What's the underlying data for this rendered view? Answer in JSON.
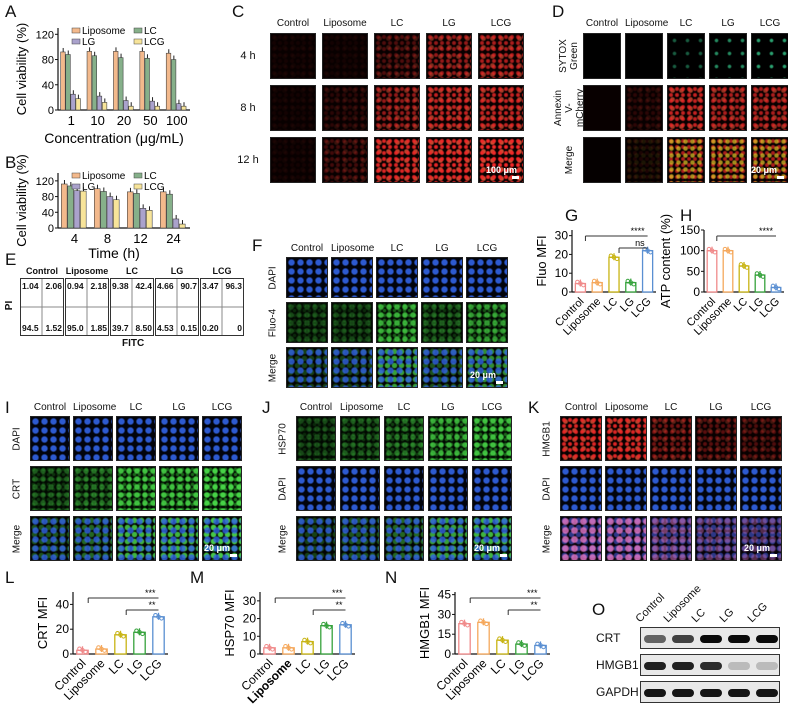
{
  "panel_labels": [
    "A",
    "B",
    "C",
    "D",
    "E",
    "F",
    "G",
    "H",
    "I",
    "J",
    "K",
    "L",
    "M",
    "N",
    "O"
  ],
  "groups": [
    "Control",
    "Liposome",
    "LC",
    "LG",
    "LCG"
  ],
  "colors": {
    "Control": "#f08a8a",
    "Liposome": "#f5a85c",
    "LC": "#c8b414",
    "LG": "#36a23c",
    "LCG": "#5a8fd2",
    "A_Liposome": "#f3b98c",
    "A_LC": "#86b08a",
    "A_LG": "#aaa2cc",
    "A_LCG": "#f7e49a"
  },
  "chart_data": [
    {
      "id": "A",
      "type": "bar",
      "ylabel": "Cell viability (%)",
      "xlabel": "Concentration (μg/mL)",
      "categories": [
        "1",
        "10",
        "20",
        "50",
        "100"
      ],
      "yticks": [
        0,
        40,
        80,
        120
      ],
      "ylim": [
        0,
        130
      ],
      "legend": "top",
      "series": [
        {
          "name": "Liposome",
          "values": [
            92,
            93,
            93,
            93,
            90
          ]
        },
        {
          "name": "LC",
          "values": [
            88,
            86,
            83,
            82,
            80
          ]
        },
        {
          "name": "LG",
          "values": [
            25,
            22,
            15,
            14,
            10
          ]
        },
        {
          "name": "LCG",
          "values": [
            18,
            12,
            6,
            6,
            6
          ]
        }
      ]
    },
    {
      "id": "B",
      "type": "bar",
      "ylabel": "Cell viability (%)",
      "xlabel": "Time (h)",
      "categories": [
        "4",
        "8",
        "12",
        "24"
      ],
      "yticks": [
        0,
        40,
        80,
        120
      ],
      "ylim": [
        0,
        140
      ],
      "legend": "top",
      "series": [
        {
          "name": "Liposome",
          "values": [
            112,
            100,
            92,
            92
          ]
        },
        {
          "name": "LC",
          "values": [
            107,
            93,
            88,
            86
          ]
        },
        {
          "name": "LG",
          "values": [
            95,
            80,
            50,
            23
          ]
        },
        {
          "name": "LCG",
          "values": [
            94,
            72,
            45,
            10
          ]
        }
      ]
    },
    {
      "id": "G",
      "type": "bar",
      "ylabel": "Fluo MFI",
      "categories": [
        "Control",
        "Liposome",
        "LC",
        "LG",
        "LCG"
      ],
      "values": [
        4.5,
        5,
        18.5,
        5,
        22
      ],
      "yticks": [
        0,
        10,
        20,
        30
      ],
      "ylim": [
        0,
        33
      ],
      "annotations": [
        "****",
        "ns"
      ]
    },
    {
      "id": "H",
      "type": "bar",
      "ylabel": "ATP content (%)",
      "categories": [
        "Control",
        "Liposome",
        "LC",
        "LG",
        "LCG"
      ],
      "values": [
        100,
        100,
        63,
        41,
        11
      ],
      "yticks": [
        0,
        50,
        100,
        150
      ],
      "ylim": [
        0,
        150
      ],
      "annotations": [
        "****"
      ]
    },
    {
      "id": "L",
      "type": "bar",
      "ylabel": "CRT MFI",
      "categories": [
        "Control",
        "Liposome",
        "LC",
        "LG",
        "LCG"
      ],
      "values": [
        3,
        4,
        15.5,
        17.5,
        30
      ],
      "yticks": [
        0,
        20,
        40
      ],
      "ylim": [
        0,
        50
      ],
      "annotations": [
        "***",
        "**"
      ]
    },
    {
      "id": "M",
      "type": "bar",
      "ylabel": "HSP70 MFI",
      "categories": [
        "Control",
        "Liposome",
        "LC",
        "LG",
        "LCG"
      ],
      "values": [
        3.5,
        3.5,
        7,
        16,
        16.5
      ],
      "yticks": [
        0,
        10,
        20,
        30
      ],
      "ylim": [
        0,
        35
      ],
      "annotations": [
        "***",
        "**"
      ]
    },
    {
      "id": "N",
      "type": "bar",
      "ylabel": "HMGB1 MFI",
      "categories": [
        "Control",
        "Liposome",
        "LC",
        "LG",
        "LCG"
      ],
      "values": [
        23,
        24,
        10.5,
        7.5,
        6.5
      ],
      "yticks": [
        0,
        15,
        30,
        45
      ],
      "ylim": [
        0,
        47
      ],
      "annotations": [
        "***",
        "**"
      ]
    }
  ],
  "panelC": {
    "cols": [
      "Control",
      "Liposome",
      "LC",
      "LG",
      "LCG"
    ],
    "rows": [
      "4 h",
      "8 h",
      "12 h"
    ],
    "scale": "100 μm"
  },
  "panelD": {
    "cols": [
      "Control",
      "Liposome",
      "LC",
      "LG",
      "LCG"
    ],
    "rows": [
      "SYTOX Green",
      "Annexin V-mCherry",
      "Merge"
    ],
    "scale": "20 μm"
  },
  "panelE": {
    "cols": [
      "Control",
      "Liposome",
      "LC",
      "LG",
      "LCG"
    ],
    "yaxis": "PI",
    "xaxis": "FITC",
    "quadrants": [
      [
        "1.04",
        "2.06",
        "94.5",
        "1.52"
      ],
      [
        "0.94",
        "2.18",
        "95.0",
        "1.85"
      ],
      [
        "9.38",
        "42.4",
        "39.7",
        "8.50"
      ],
      [
        "4.66",
        "90.7",
        "4.53",
        "0.15"
      ],
      [
        "3.47",
        "96.3",
        "0.20",
        "0"
      ]
    ]
  },
  "panelF": {
    "cols": [
      "Control",
      "Liposome",
      "LC",
      "LG",
      "LCG"
    ],
    "rows": [
      "DAPI",
      "Fluo-4",
      "Merge"
    ],
    "scale": "20 μm"
  },
  "panelI": {
    "cols": [
      "Control",
      "Liposome",
      "LC",
      "LG",
      "LCG"
    ],
    "rows": [
      "DAPI",
      "CRT",
      "Merge"
    ],
    "scale": "20 μm"
  },
  "panelJ": {
    "cols": [
      "Control",
      "Liposome",
      "LC",
      "LG",
      "LCG"
    ],
    "rows": [
      "HSP70",
      "DAPI",
      "Merge"
    ],
    "scale": "20 μm"
  },
  "panelK": {
    "cols": [
      "Control",
      "Liposome",
      "LC",
      "LG",
      "LCG"
    ],
    "rows": [
      "HMGB1",
      "DAPI",
      "Merge"
    ],
    "scale": "20 μm"
  },
  "panelO": {
    "cols": [
      "Control",
      "Liposome",
      "LC",
      "LG",
      "LCG"
    ],
    "rows": [
      "CRT",
      "HMGB1",
      "GAPDH"
    ],
    "band_intensity": [
      [
        0.6,
        0.75,
        1,
        1,
        1
      ],
      [
        0.9,
        0.9,
        0.85,
        0.2,
        0.2
      ],
      [
        0.95,
        0.95,
        0.95,
        0.95,
        0.95
      ]
    ]
  }
}
